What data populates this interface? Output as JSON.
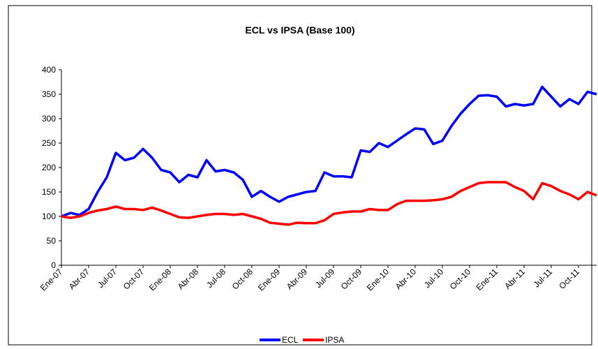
{
  "chart_data": {
    "type": "line",
    "title": "ECL vs IPSA (Base 100)",
    "categories": [
      "Ene-07",
      null,
      null,
      "Abr-07",
      null,
      null,
      "Jul-07",
      null,
      null,
      "Oct-07",
      null,
      null,
      "Ene-08",
      null,
      null,
      "Abr-08",
      null,
      null,
      "Jul-08",
      null,
      null,
      "Oct-08",
      null,
      null,
      "Ene-09",
      null,
      null,
      "Abr-09",
      null,
      null,
      "Jul-09",
      null,
      null,
      "Oct-09",
      null,
      null,
      "Ene-10",
      null,
      null,
      "Abr-10",
      null,
      null,
      "Jul-10",
      null,
      null,
      "Oct-10",
      null,
      null,
      "Ene-11",
      null,
      null,
      "Abr-11",
      null,
      null,
      "Jul-11",
      null,
      null,
      "Oct-11",
      null,
      null
    ],
    "series": [
      {
        "name": "ECL",
        "color": "#0000ff",
        "values": [
          100,
          107,
          103,
          115,
          150,
          180,
          230,
          215,
          220,
          238,
          220,
          195,
          190,
          170,
          185,
          180,
          215,
          192,
          195,
          190,
          175,
          140,
          152,
          140,
          130,
          140,
          145,
          150,
          152,
          190,
          182,
          182,
          180,
          235,
          232,
          250,
          242,
          255,
          268,
          280,
          278,
          248,
          255,
          285,
          310,
          330,
          347,
          348,
          345,
          325,
          330,
          327,
          330,
          365,
          345,
          325,
          340,
          330,
          355,
          350
        ]
      },
      {
        "name": "IPSA",
        "color": "#ff0000",
        "values": [
          100,
          97,
          100,
          107,
          112,
          115,
          120,
          115,
          115,
          113,
          118,
          112,
          105,
          98,
          97,
          100,
          103,
          105,
          105,
          103,
          105,
          100,
          95,
          87,
          85,
          83,
          87,
          86,
          86,
          92,
          105,
          108,
          110,
          110,
          115,
          113,
          113,
          125,
          132,
          132,
          132,
          133,
          135,
          140,
          152,
          160,
          168,
          170,
          170,
          170,
          160,
          152,
          135,
          168,
          162,
          152,
          145,
          135,
          150,
          143
        ]
      }
    ],
    "ylim": [
      0,
      400
    ],
    "yticks": [
      0,
      50,
      100,
      150,
      200,
      250,
      300,
      350,
      400
    ],
    "legend": "bottom"
  }
}
